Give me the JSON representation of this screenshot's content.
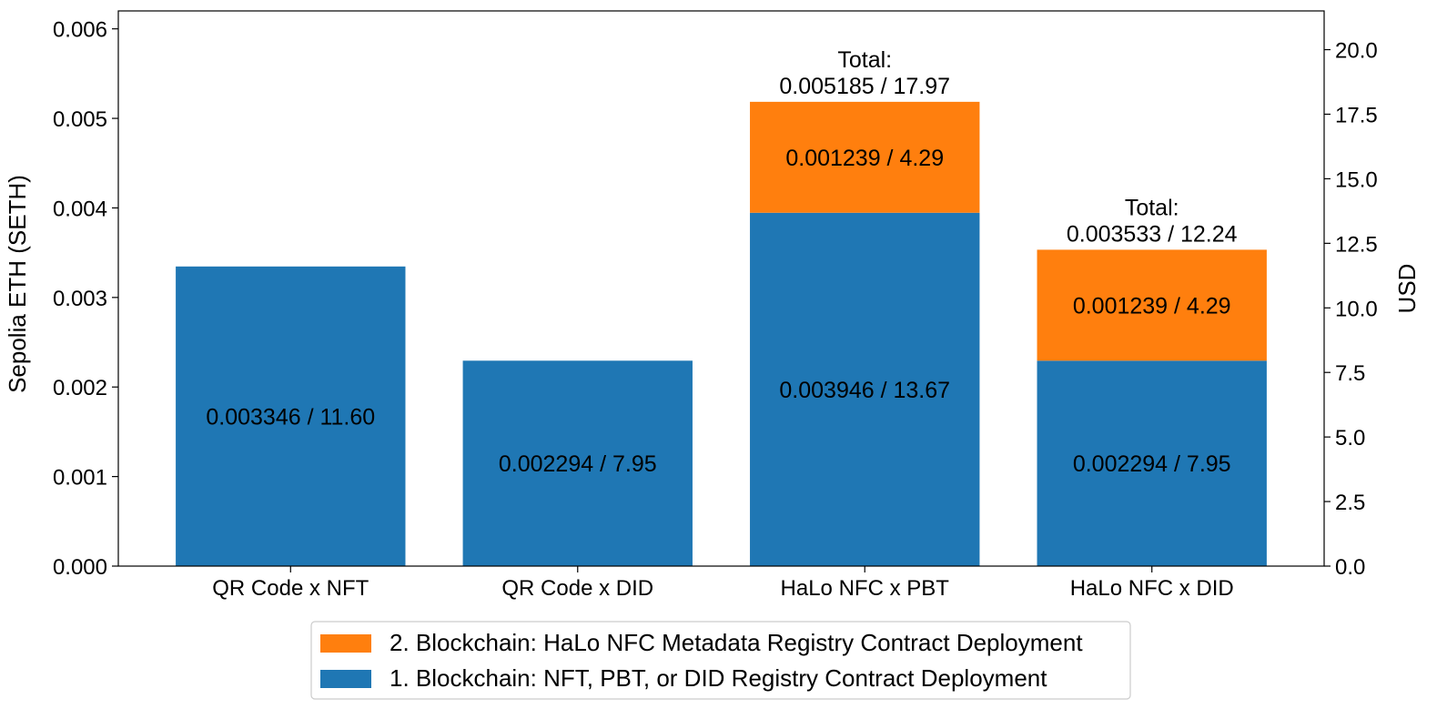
{
  "chart_data": {
    "type": "bar",
    "stacked": true,
    "categories": [
      "QR Code x NFT",
      "QR Code x DID",
      "HaLo NFC x PBT",
      "HaLo NFC x DID"
    ],
    "series": [
      {
        "name": "1. Blockchain: NFT, PBT, or DID Registry Contract Deployment",
        "color": "#1f77b4",
        "values": [
          0.003346,
          0.002294,
          0.003946,
          0.002294
        ],
        "labels": [
          "0.003346 / 11.60",
          "0.002294 / 7.95",
          "0.003946 / 13.67",
          "0.002294 / 7.95"
        ]
      },
      {
        "name": "2. Blockchain: HaLo NFC Metadata Registry Contract Deployment",
        "color": "#ff7f0e",
        "values": [
          0,
          0,
          0.001239,
          0.001239
        ],
        "labels": [
          "",
          "",
          "0.001239 / 4.29",
          "0.001239 / 4.29"
        ]
      }
    ],
    "totals": [
      {
        "category_index": 2,
        "heading": "Total:",
        "value_text": "0.005185 / 17.97",
        "value": 0.005185
      },
      {
        "category_index": 3,
        "heading": "Total:",
        "value_text": "0.003533 / 12.24",
        "value": 0.003533
      }
    ],
    "ylabel": "Sepolia ETH (SETH)",
    "ylim": [
      0,
      0.0062
    ],
    "yticks": [
      0.0,
      0.001,
      0.002,
      0.003,
      0.004,
      0.005,
      0.006
    ],
    "ytick_labels": [
      "0.000",
      "0.001",
      "0.002",
      "0.003",
      "0.004",
      "0.005",
      "0.006"
    ],
    "y2label": "USD",
    "y2lim": [
      0,
      21.5
    ],
    "y2ticks": [
      0.0,
      2.5,
      5.0,
      7.5,
      10.0,
      12.5,
      15.0,
      17.5,
      20.0
    ],
    "y2tick_labels": [
      "0.0",
      "2.5",
      "5.0",
      "7.5",
      "10.0",
      "12.5",
      "15.0",
      "17.5",
      "20.0"
    ],
    "grid": false,
    "legend_position": "bottom-center"
  }
}
